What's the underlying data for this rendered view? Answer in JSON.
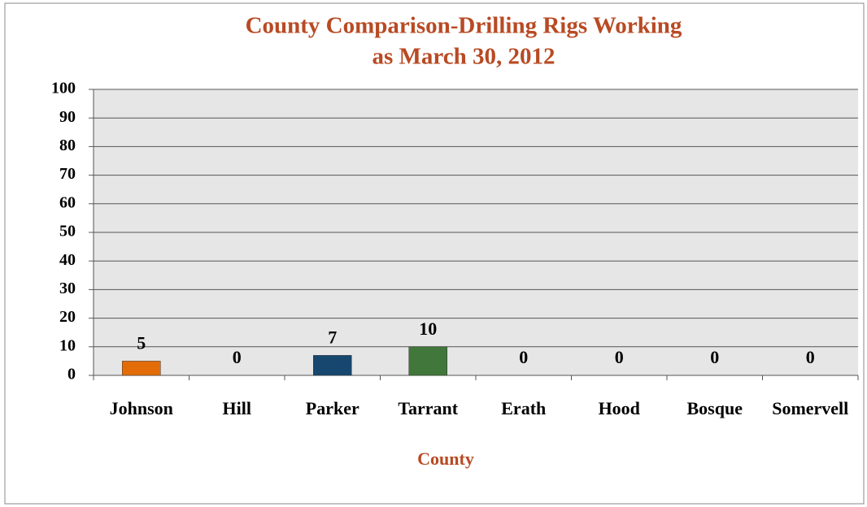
{
  "chart_data": {
    "type": "bar",
    "title": [
      "County Comparison-Drilling Rigs Working",
      "as March 30, 2012"
    ],
    "x_label": "County",
    "categories": [
      "Johnson",
      "Hill",
      "Parker",
      "Tarrant",
      "Erath",
      "Hood",
      "Bosque",
      "Somervell"
    ],
    "values": [
      5,
      0,
      7,
      10,
      0,
      0,
      0,
      0
    ],
    "colors": [
      "#e36c09",
      "#c0504d",
      "#17476e",
      "#41773a",
      "#8064a2",
      "#4bacc6",
      "#f79646",
      "#4f81bd"
    ],
    "ylim": [
      0,
      100
    ],
    "yticks": [
      0,
      10,
      20,
      30,
      40,
      50,
      60,
      70,
      80,
      90,
      100
    ],
    "grid": true
  }
}
